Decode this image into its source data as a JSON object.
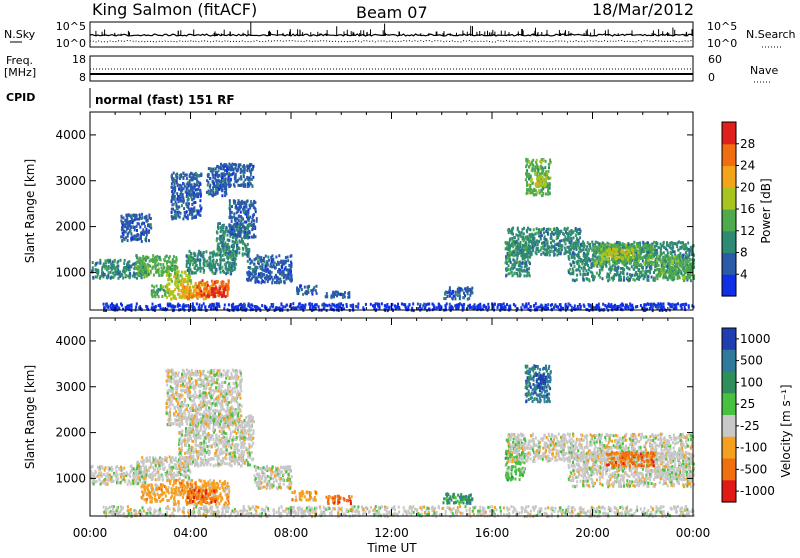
{
  "header": {
    "station": "King Salmon (fitACF)",
    "beam": "Beam 07",
    "date": "18/Mar/2012"
  },
  "noise_panel": {
    "left_label": "N.Sky",
    "left_ticks": [
      "10^5",
      "10^0"
    ],
    "right_label": "N.Search",
    "right_ticks": [
      "10^5",
      "10^0"
    ]
  },
  "freq_panel": {
    "left_label_1": "Freq.",
    "left_label_2": "[MHz]",
    "left_ticks": [
      "18",
      "8"
    ],
    "right_label": "Nave",
    "right_ticks": [
      "60",
      "0"
    ]
  },
  "cpid": {
    "label": "CPID",
    "text": "normal (fast) 151 RF"
  },
  "chart_data": [
    {
      "type": "heatmap",
      "name": "power",
      "xlabel": "",
      "ylabel": "Slant Range [km]",
      "xlim": [
        0,
        24
      ],
      "ylim": [
        180,
        4500
      ],
      "yticks": [
        "1000",
        "2000",
        "3000",
        "4000"
      ],
      "colorbar": {
        "label": "Power [dB]",
        "ticks": [
          "4",
          "8",
          "12",
          "16",
          "20",
          "24",
          "28"
        ],
        "colors": [
          "#1030e6",
          "#2a5aa8",
          "#2f8a73",
          "#4eaa4c",
          "#a8c41e",
          "#f2a41a",
          "#f06e10",
          "#e0201c"
        ]
      },
      "regions": [
        {
          "t": [
            0.0,
            2.2
          ],
          "r": [
            900,
            1300
          ],
          "level": 2
        },
        {
          "t": [
            1.8,
            3.5
          ],
          "r": [
            950,
            1400
          ],
          "level": 3
        },
        {
          "t": [
            2.4,
            3.0
          ],
          "r": [
            500,
            750
          ],
          "level": 3
        },
        {
          "t": [
            3.0,
            4.0
          ],
          "r": [
            450,
            1050
          ],
          "level": 4
        },
        {
          "t": [
            3.5,
            4.8
          ],
          "r": [
            450,
            800
          ],
          "level": 5
        },
        {
          "t": [
            4.2,
            5.5
          ],
          "r": [
            500,
            850
          ],
          "level": 6
        },
        {
          "t": [
            4.6,
            5.4
          ],
          "r": [
            500,
            700
          ],
          "level": 7
        },
        {
          "t": [
            3.8,
            5.8
          ],
          "r": [
            1000,
            1500
          ],
          "level": 2
        },
        {
          "t": [
            5.0,
            6.3
          ],
          "r": [
            1400,
            2100
          ],
          "level": 2
        },
        {
          "t": [
            5.5,
            6.6
          ],
          "r": [
            1800,
            2600
          ],
          "level": 1
        },
        {
          "t": [
            3.2,
            4.4
          ],
          "r": [
            2200,
            3200
          ],
          "level": 1
        },
        {
          "t": [
            4.6,
            5.4
          ],
          "r": [
            2700,
            3300
          ],
          "level": 1
        },
        {
          "t": [
            5.0,
            6.5
          ],
          "r": [
            2900,
            3400
          ],
          "level": 1
        },
        {
          "t": [
            1.2,
            2.4
          ],
          "r": [
            1700,
            2300
          ],
          "level": 1
        },
        {
          "t": [
            6.2,
            8.0
          ],
          "r": [
            800,
            1400
          ],
          "level": 1
        },
        {
          "t": [
            8.2,
            9.0
          ],
          "r": [
            550,
            750
          ],
          "level": 1
        },
        {
          "t": [
            9.3,
            10.3
          ],
          "r": [
            480,
            620
          ],
          "level": 1
        },
        {
          "t": [
            0.5,
            24.0
          ],
          "r": [
            200,
            350
          ],
          "level": 0
        },
        {
          "t": [
            14.0,
            15.2
          ],
          "r": [
            450,
            700
          ],
          "level": 1
        },
        {
          "t": [
            16.6,
            19.5
          ],
          "r": [
            1400,
            2000
          ],
          "level": 2
        },
        {
          "t": [
            17.3,
            18.3
          ],
          "r": [
            2700,
            3500
          ],
          "level": 3
        },
        {
          "t": [
            17.7,
            18.2
          ],
          "r": [
            2900,
            3200
          ],
          "level": 4
        },
        {
          "t": [
            16.5,
            17.5
          ],
          "r": [
            950,
            1700
          ],
          "level": 2
        },
        {
          "t": [
            19.0,
            24.0
          ],
          "r": [
            850,
            1700
          ],
          "level": 2
        },
        {
          "t": [
            20.0,
            22.5
          ],
          "r": [
            1200,
            1650
          ],
          "level": 3
        },
        {
          "t": [
            20.3,
            21.6
          ],
          "r": [
            1300,
            1550
          ],
          "level": 4
        },
        {
          "t": [
            22.5,
            24.0
          ],
          "r": [
            900,
            1400
          ],
          "level": 3
        }
      ]
    },
    {
      "type": "heatmap",
      "name": "velocity",
      "xlabel": "Time UT",
      "ylabel": "Slant Range [km]",
      "xlim": [
        0,
        24
      ],
      "ylim": [
        180,
        4500
      ],
      "xticks": [
        "00:00",
        "04:00",
        "08:00",
        "12:00",
        "16:00",
        "20:00",
        "00:00"
      ],
      "yticks": [
        "1000",
        "2000",
        "3000",
        "4000"
      ],
      "colorbar": {
        "label": "Velocity [m s⁻¹]",
        "ticks": [
          "1000",
          "500",
          "100",
          "25",
          "-25",
          "-100",
          "-500",
          "-1000"
        ],
        "colors": [
          "#1f3fb0",
          "#2f7a9a",
          "#2f8f5a",
          "#48c040",
          "#c8c8c8",
          "#f5a020",
          "#f07010",
          "#e01818"
        ]
      },
      "regions": [
        {
          "t": [
            0.0,
            2.2
          ],
          "r": [
            900,
            1300
          ],
          "level": 4
        },
        {
          "t": [
            1.8,
            4.0
          ],
          "r": [
            1000,
            1500
          ],
          "level": 4
        },
        {
          "t": [
            3.5,
            6.5
          ],
          "r": [
            1300,
            2400
          ],
          "level": 4
        },
        {
          "t": [
            3.0,
            6.0
          ],
          "r": [
            2200,
            3400
          ],
          "level": 4
        },
        {
          "t": [
            2.0,
            3.0
          ],
          "r": [
            500,
            900
          ],
          "level": 5
        },
        {
          "t": [
            3.0,
            5.5
          ],
          "r": [
            450,
            1000
          ],
          "level": 5
        },
        {
          "t": [
            3.8,
            5.0
          ],
          "r": [
            500,
            800
          ],
          "level": 6
        },
        {
          "t": [
            6.5,
            8.0
          ],
          "r": [
            800,
            1300
          ],
          "level": 4
        },
        {
          "t": [
            8.0,
            9.0
          ],
          "r": [
            550,
            750
          ],
          "level": 5
        },
        {
          "t": [
            9.3,
            10.4
          ],
          "r": [
            480,
            650
          ],
          "level": 6
        },
        {
          "t": [
            0.5,
            24.0
          ],
          "r": [
            200,
            420
          ],
          "level": 4
        },
        {
          "t": [
            14.0,
            15.2
          ],
          "r": [
            480,
            700
          ],
          "level": 2
        },
        {
          "t": [
            16.5,
            17.3
          ],
          "r": [
            1000,
            1900
          ],
          "level": 3
        },
        {
          "t": [
            16.6,
            24.0
          ],
          "r": [
            1400,
            2000
          ],
          "level": 4
        },
        {
          "t": [
            17.3,
            18.3
          ],
          "r": [
            2700,
            3500
          ],
          "level": 1
        },
        {
          "t": [
            17.7,
            18.1
          ],
          "r": [
            3000,
            3300
          ],
          "level": 0
        },
        {
          "t": [
            19.0,
            24.0
          ],
          "r": [
            850,
            1600
          ],
          "level": 4
        },
        {
          "t": [
            20.5,
            22.5
          ],
          "r": [
            1300,
            1600
          ],
          "level": 6
        },
        {
          "t": [
            22.5,
            24.0
          ],
          "r": [
            1000,
            1300
          ],
          "level": 4
        }
      ]
    }
  ]
}
